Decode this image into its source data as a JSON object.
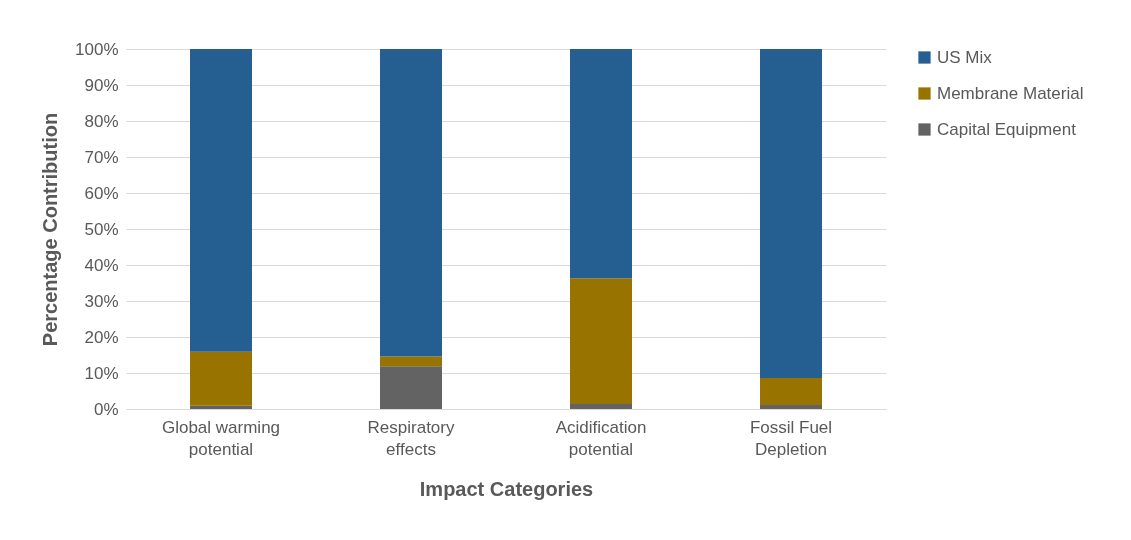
{
  "chart_data": {
    "type": "bar",
    "stacked": true,
    "xlabel": "Impact Categories",
    "ylabel": "Percentage Contribution",
    "categories": [
      "Global warming potential",
      "Respiratory effects",
      "Acidification potential",
      "Fossil Fuel Depletion"
    ],
    "series": [
      {
        "name": "Capital Equipment",
        "color": "#636363",
        "values": [
          0.9,
          11.9,
          1.4,
          1.1
        ]
      },
      {
        "name": "Membrane Material",
        "color": "#997300",
        "values": [
          15.0,
          2.7,
          34.9,
          7.5
        ]
      },
      {
        "name": "US Mix",
        "color": "#255e91",
        "values": [
          84.1,
          85.4,
          63.7,
          91.4
        ]
      }
    ],
    "ylim": [
      0,
      100
    ],
    "yticks": [
      {
        "value": 0,
        "label": "0%"
      },
      {
        "value": 10,
        "label": "10%"
      },
      {
        "value": 20,
        "label": "20%"
      },
      {
        "value": 30,
        "label": "30%"
      },
      {
        "value": 40,
        "label": "40%"
      },
      {
        "value": 50,
        "label": "50%"
      },
      {
        "value": 60,
        "label": "60%"
      },
      {
        "value": 70,
        "label": "70%"
      },
      {
        "value": 80,
        "label": "80%"
      },
      {
        "value": 90,
        "label": "90%"
      },
      {
        "value": 100,
        "label": "100%"
      }
    ],
    "grid": "y",
    "legend": "right"
  }
}
